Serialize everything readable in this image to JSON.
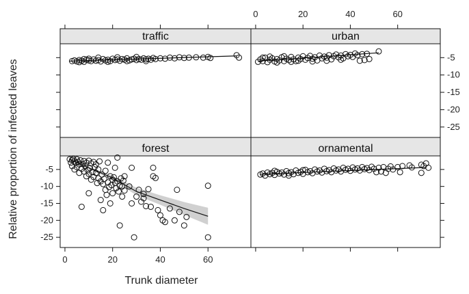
{
  "chart_data": {
    "type": "scatter",
    "layout": "lattice 2x2 panels with shared axes",
    "xlabel": "Trunk diameter",
    "ylabel": "Relative proportion of infected leaves",
    "xlim": [
      -2,
      78
    ],
    "ylim": [
      -28,
      -1
    ],
    "x_ticks": [
      0,
      20,
      40,
      60
    ],
    "y_ticks": [
      -5,
      -10,
      -15,
      -20,
      -25
    ],
    "x_tick_labels": [
      "0",
      "20",
      "40",
      "60"
    ],
    "y_tick_labels": [
      "-5",
      "-10",
      "-15",
      "-20",
      "-25"
    ],
    "grid": false,
    "panels": [
      {
        "name": "traffic",
        "row": "top",
        "col": "left",
        "fit_line": [
          [
            2,
            -6.0
          ],
          [
            72,
            -4.5
          ]
        ],
        "band": null,
        "points": [
          [
            3,
            -6.0
          ],
          [
            4,
            -5.8
          ],
          [
            5,
            -6.1
          ],
          [
            6,
            -5.7
          ],
          [
            7,
            -5.9
          ],
          [
            8,
            -6.2
          ],
          [
            9,
            -5.6
          ],
          [
            10,
            -5.8
          ],
          [
            11,
            -6.0
          ],
          [
            12,
            -5.5
          ],
          [
            13,
            -5.9
          ],
          [
            14,
            -5.7
          ],
          [
            15,
            -6.1
          ],
          [
            16,
            -5.4
          ],
          [
            17,
            -5.8
          ],
          [
            18,
            -5.6
          ],
          [
            19,
            -6.0
          ],
          [
            20,
            -5.3
          ],
          [
            21,
            -5.7
          ],
          [
            22,
            -5.5
          ],
          [
            23,
            -5.9
          ],
          [
            24,
            -5.4
          ],
          [
            25,
            -5.6
          ],
          [
            26,
            -5.2
          ],
          [
            27,
            -5.8
          ],
          [
            28,
            -5.5
          ],
          [
            29,
            -5.3
          ],
          [
            30,
            -5.7
          ],
          [
            31,
            -5.4
          ],
          [
            32,
            -5.6
          ],
          [
            33,
            -5.2
          ],
          [
            34,
            -5.5
          ],
          [
            35,
            -5.3
          ],
          [
            36,
            -5.6
          ],
          [
            37,
            -5.1
          ],
          [
            38,
            -5.4
          ],
          [
            40,
            -5.2
          ],
          [
            42,
            -5.3
          ],
          [
            44,
            -5.0
          ],
          [
            46,
            -5.2
          ],
          [
            48,
            -4.9
          ],
          [
            50,
            -5.1
          ],
          [
            52,
            -5.0
          ],
          [
            55,
            -4.9
          ],
          [
            58,
            -5.0
          ],
          [
            60,
            -4.8
          ],
          [
            61,
            -5.1
          ],
          [
            72,
            -4.3
          ],
          [
            73,
            -5.0
          ],
          [
            14,
            -5.0
          ],
          [
            18,
            -6.2
          ],
          [
            22,
            -4.9
          ],
          [
            26,
            -6.0
          ],
          [
            30,
            -4.8
          ],
          [
            34,
            -6.0
          ],
          [
            10,
            -5.3
          ],
          [
            8,
            -5.4
          ],
          [
            6,
            -6.3
          ]
        ]
      },
      {
        "name": "urban",
        "row": "top",
        "col": "right",
        "fit_line": [
          [
            1,
            -6.0
          ],
          [
            52,
            -3.6
          ]
        ],
        "band": null,
        "points": [
          [
            1,
            -6.2
          ],
          [
            2,
            -5.5
          ],
          [
            3,
            -6.0
          ],
          [
            4,
            -5.0
          ],
          [
            5,
            -6.3
          ],
          [
            6,
            -5.6
          ],
          [
            7,
            -5.2
          ],
          [
            8,
            -6.1
          ],
          [
            9,
            -5.4
          ],
          [
            10,
            -5.8
          ],
          [
            11,
            -4.9
          ],
          [
            12,
            -6.0
          ],
          [
            13,
            -5.3
          ],
          [
            14,
            -5.7
          ],
          [
            15,
            -4.8
          ],
          [
            16,
            -5.5
          ],
          [
            17,
            -6.0
          ],
          [
            18,
            -5.0
          ],
          [
            19,
            -5.4
          ],
          [
            20,
            -4.6
          ],
          [
            21,
            -5.6
          ],
          [
            22,
            -5.1
          ],
          [
            23,
            -4.5
          ],
          [
            24,
            -5.3
          ],
          [
            25,
            -4.9
          ],
          [
            26,
            -5.8
          ],
          [
            27,
            -4.4
          ],
          [
            28,
            -5.2
          ],
          [
            29,
            -4.7
          ],
          [
            30,
            -5.0
          ],
          [
            31,
            -4.3
          ],
          [
            32,
            -5.5
          ],
          [
            33,
            -4.6
          ],
          [
            34,
            -4.1
          ],
          [
            35,
            -4.9
          ],
          [
            36,
            -4.4
          ],
          [
            37,
            -5.2
          ],
          [
            38,
            -4.0
          ],
          [
            39,
            -4.6
          ],
          [
            40,
            -4.2
          ],
          [
            41,
            -4.8
          ],
          [
            42,
            -3.8
          ],
          [
            43,
            -4.3
          ],
          [
            44,
            -5.9
          ],
          [
            45,
            -4.0
          ],
          [
            46,
            -5.7
          ],
          [
            47,
            -3.9
          ],
          [
            48,
            -5.4
          ],
          [
            52,
            -3.2
          ],
          [
            3,
            -5.0
          ],
          [
            6,
            -4.7
          ],
          [
            9,
            -6.4
          ],
          [
            12,
            -4.6
          ],
          [
            15,
            -6.2
          ],
          [
            18,
            -5.9
          ],
          [
            24,
            -6.1
          ],
          [
            30,
            -5.9
          ],
          [
            36,
            -5.6
          ]
        ]
      },
      {
        "name": "forest",
        "row": "bottom",
        "col": "left",
        "fit_line": [
          [
            2,
            -2.0
          ],
          [
            10,
            -4.5
          ],
          [
            20,
            -7.5
          ],
          [
            30,
            -11.5
          ],
          [
            40,
            -14.0
          ],
          [
            50,
            -16.5
          ],
          [
            60,
            -18.8
          ]
        ],
        "band": {
          "upper": [
            [
              2,
              -1.7
            ],
            [
              10,
              -4.2
            ],
            [
              20,
              -6.9
            ],
            [
              30,
              -10.4
            ],
            [
              40,
              -12.6
            ],
            [
              50,
              -14.6
            ],
            [
              60,
              -16.3
            ]
          ],
          "lower": [
            [
              2,
              -2.3
            ],
            [
              10,
              -4.8
            ],
            [
              20,
              -8.1
            ],
            [
              30,
              -12.6
            ],
            [
              40,
              -15.4
            ],
            [
              50,
              -18.4
            ],
            [
              60,
              -21.3
            ]
          ]
        },
        "points": [
          [
            2,
            -2.0
          ],
          [
            2.5,
            -3.0
          ],
          [
            3,
            -2.2
          ],
          [
            3,
            -4.0
          ],
          [
            3.5,
            -1.9
          ],
          [
            4,
            -2.6
          ],
          [
            4,
            -5.0
          ],
          [
            4.5,
            -3.1
          ],
          [
            5,
            -2.0
          ],
          [
            5,
            -4.3
          ],
          [
            5.5,
            -2.8
          ],
          [
            6,
            -3.5
          ],
          [
            6,
            -6.0
          ],
          [
            6.5,
            -2.3
          ],
          [
            7,
            -4.8
          ],
          [
            7,
            -16.0
          ],
          [
            7.5,
            -3.4
          ],
          [
            8,
            -2.5
          ],
          [
            8,
            -5.6
          ],
          [
            8.5,
            -4.0
          ],
          [
            9,
            -3.0
          ],
          [
            9,
            -7.0
          ],
          [
            9.5,
            -5.2
          ],
          [
            10,
            -2.4
          ],
          [
            10,
            -6.3
          ],
          [
            10,
            -12.0
          ],
          [
            10.5,
            -4.6
          ],
          [
            11,
            -3.2
          ],
          [
            11,
            -8.0
          ],
          [
            11.5,
            -5.8
          ],
          [
            12,
            -2.8
          ],
          [
            12,
            -7.2
          ],
          [
            12.5,
            -4.3
          ],
          [
            13,
            -6.0
          ],
          [
            13,
            -3.5
          ],
          [
            13.5,
            -9.0
          ],
          [
            14,
            -7.6
          ],
          [
            14,
            -5.0
          ],
          [
            14.5,
            -2.6
          ],
          [
            15,
            -8.5
          ],
          [
            15,
            -14.0
          ],
          [
            15.5,
            -6.5
          ],
          [
            16,
            -9.3
          ],
          [
            16,
            -17.0
          ],
          [
            16.5,
            -7.8
          ],
          [
            17,
            -11.0
          ],
          [
            17,
            -5.4
          ],
          [
            17.5,
            -12.5
          ],
          [
            18,
            -8.8
          ],
          [
            18,
            -3.0
          ],
          [
            18.5,
            -10.2
          ],
          [
            19,
            -7.0
          ],
          [
            19,
            -15.0
          ],
          [
            19.5,
            -9.6
          ],
          [
            20,
            -8.0
          ],
          [
            20,
            -12.0
          ],
          [
            20.5,
            -7.3
          ],
          [
            21,
            -9.0
          ],
          [
            21,
            -4.5
          ],
          [
            21.5,
            -10.5
          ],
          [
            22,
            -8.5
          ],
          [
            22,
            -1.5
          ],
          [
            22.5,
            -11.5
          ],
          [
            23,
            -9.8
          ],
          [
            23,
            -21.5
          ],
          [
            23.5,
            -7.6
          ],
          [
            24,
            -10.0
          ],
          [
            24,
            -13.0
          ],
          [
            24.5,
            -8.3
          ],
          [
            25,
            -11.2
          ],
          [
            25,
            -7.0
          ],
          [
            27,
            -10.0
          ],
          [
            28,
            -15.0
          ],
          [
            28,
            -4.5
          ],
          [
            29,
            -25.0
          ],
          [
            30,
            -13.0
          ],
          [
            31,
            -11.0
          ],
          [
            32,
            -14.5
          ],
          [
            33,
            -12.2
          ],
          [
            33,
            -13.5
          ],
          [
            34,
            -15.8
          ],
          [
            35,
            -10.8
          ],
          [
            36,
            -16.0
          ],
          [
            37,
            -4.5
          ],
          [
            37,
            -7.0
          ],
          [
            38,
            -7.5
          ],
          [
            39,
            -17.0
          ],
          [
            40,
            -18.5
          ],
          [
            41,
            -20.0
          ],
          [
            42,
            -20.5
          ],
          [
            44,
            -16.5
          ],
          [
            46,
            -20.0
          ],
          [
            47,
            -11.0
          ],
          [
            48,
            -17.5
          ],
          [
            50,
            -21.5
          ],
          [
            51,
            -19.0
          ],
          [
            60,
            -9.8
          ],
          [
            60,
            -25.0
          ]
        ]
      },
      {
        "name": "ornamental",
        "row": "bottom",
        "col": "right",
        "fit_line": [
          [
            2,
            -6.4
          ],
          [
            72,
            -4.4
          ]
        ],
        "band": null,
        "points": [
          [
            2,
            -6.5
          ],
          [
            3,
            -6.2
          ],
          [
            4,
            -6.8
          ],
          [
            5,
            -5.9
          ],
          [
            6,
            -6.4
          ],
          [
            7,
            -6.0
          ],
          [
            8,
            -6.6
          ],
          [
            9,
            -5.7
          ],
          [
            10,
            -6.2
          ],
          [
            11,
            -5.9
          ],
          [
            12,
            -6.5
          ],
          [
            13,
            -5.5
          ],
          [
            14,
            -6.1
          ],
          [
            15,
            -5.8
          ],
          [
            16,
            -6.4
          ],
          [
            17,
            -5.3
          ],
          [
            18,
            -6.0
          ],
          [
            19,
            -5.7
          ],
          [
            20,
            -6.3
          ],
          [
            21,
            -5.1
          ],
          [
            22,
            -5.8
          ],
          [
            23,
            -5.5
          ],
          [
            24,
            -6.1
          ],
          [
            25,
            -5.0
          ],
          [
            26,
            -5.6
          ],
          [
            27,
            -5.3
          ],
          [
            28,
            -5.9
          ],
          [
            29,
            -4.8
          ],
          [
            30,
            -5.5
          ],
          [
            31,
            -5.2
          ],
          [
            32,
            -5.8
          ],
          [
            33,
            -4.7
          ],
          [
            34,
            -5.3
          ],
          [
            35,
            -5.0
          ],
          [
            36,
            -5.6
          ],
          [
            37,
            -4.5
          ],
          [
            38,
            -5.1
          ],
          [
            39,
            -4.8
          ],
          [
            40,
            -5.4
          ],
          [
            41,
            -4.4
          ],
          [
            42,
            -5.0
          ],
          [
            43,
            -4.7
          ],
          [
            44,
            -5.3
          ],
          [
            45,
            -4.3
          ],
          [
            46,
            -4.9
          ],
          [
            47,
            -4.6
          ],
          [
            48,
            -5.2
          ],
          [
            49,
            -4.2
          ],
          [
            50,
            -4.8
          ],
          [
            51,
            -5.8
          ],
          [
            52,
            -4.5
          ],
          [
            54,
            -4.3
          ],
          [
            55,
            -6.0
          ],
          [
            57,
            -4.1
          ],
          [
            60,
            -4.3
          ],
          [
            61,
            -5.8
          ],
          [
            70,
            -3.6
          ],
          [
            71,
            -4.0
          ],
          [
            72,
            -3.2
          ],
          [
            73,
            -4.5
          ],
          [
            70,
            -6.0
          ],
          [
            65,
            -3.8
          ],
          [
            66,
            -4.4
          ],
          [
            62,
            -4.0
          ],
          [
            58,
            -5.0
          ],
          [
            53,
            -5.6
          ],
          [
            56,
            -4.8
          ],
          [
            8,
            -5.4
          ],
          [
            14,
            -6.8
          ],
          [
            20,
            -5.2
          ]
        ]
      }
    ]
  }
}
